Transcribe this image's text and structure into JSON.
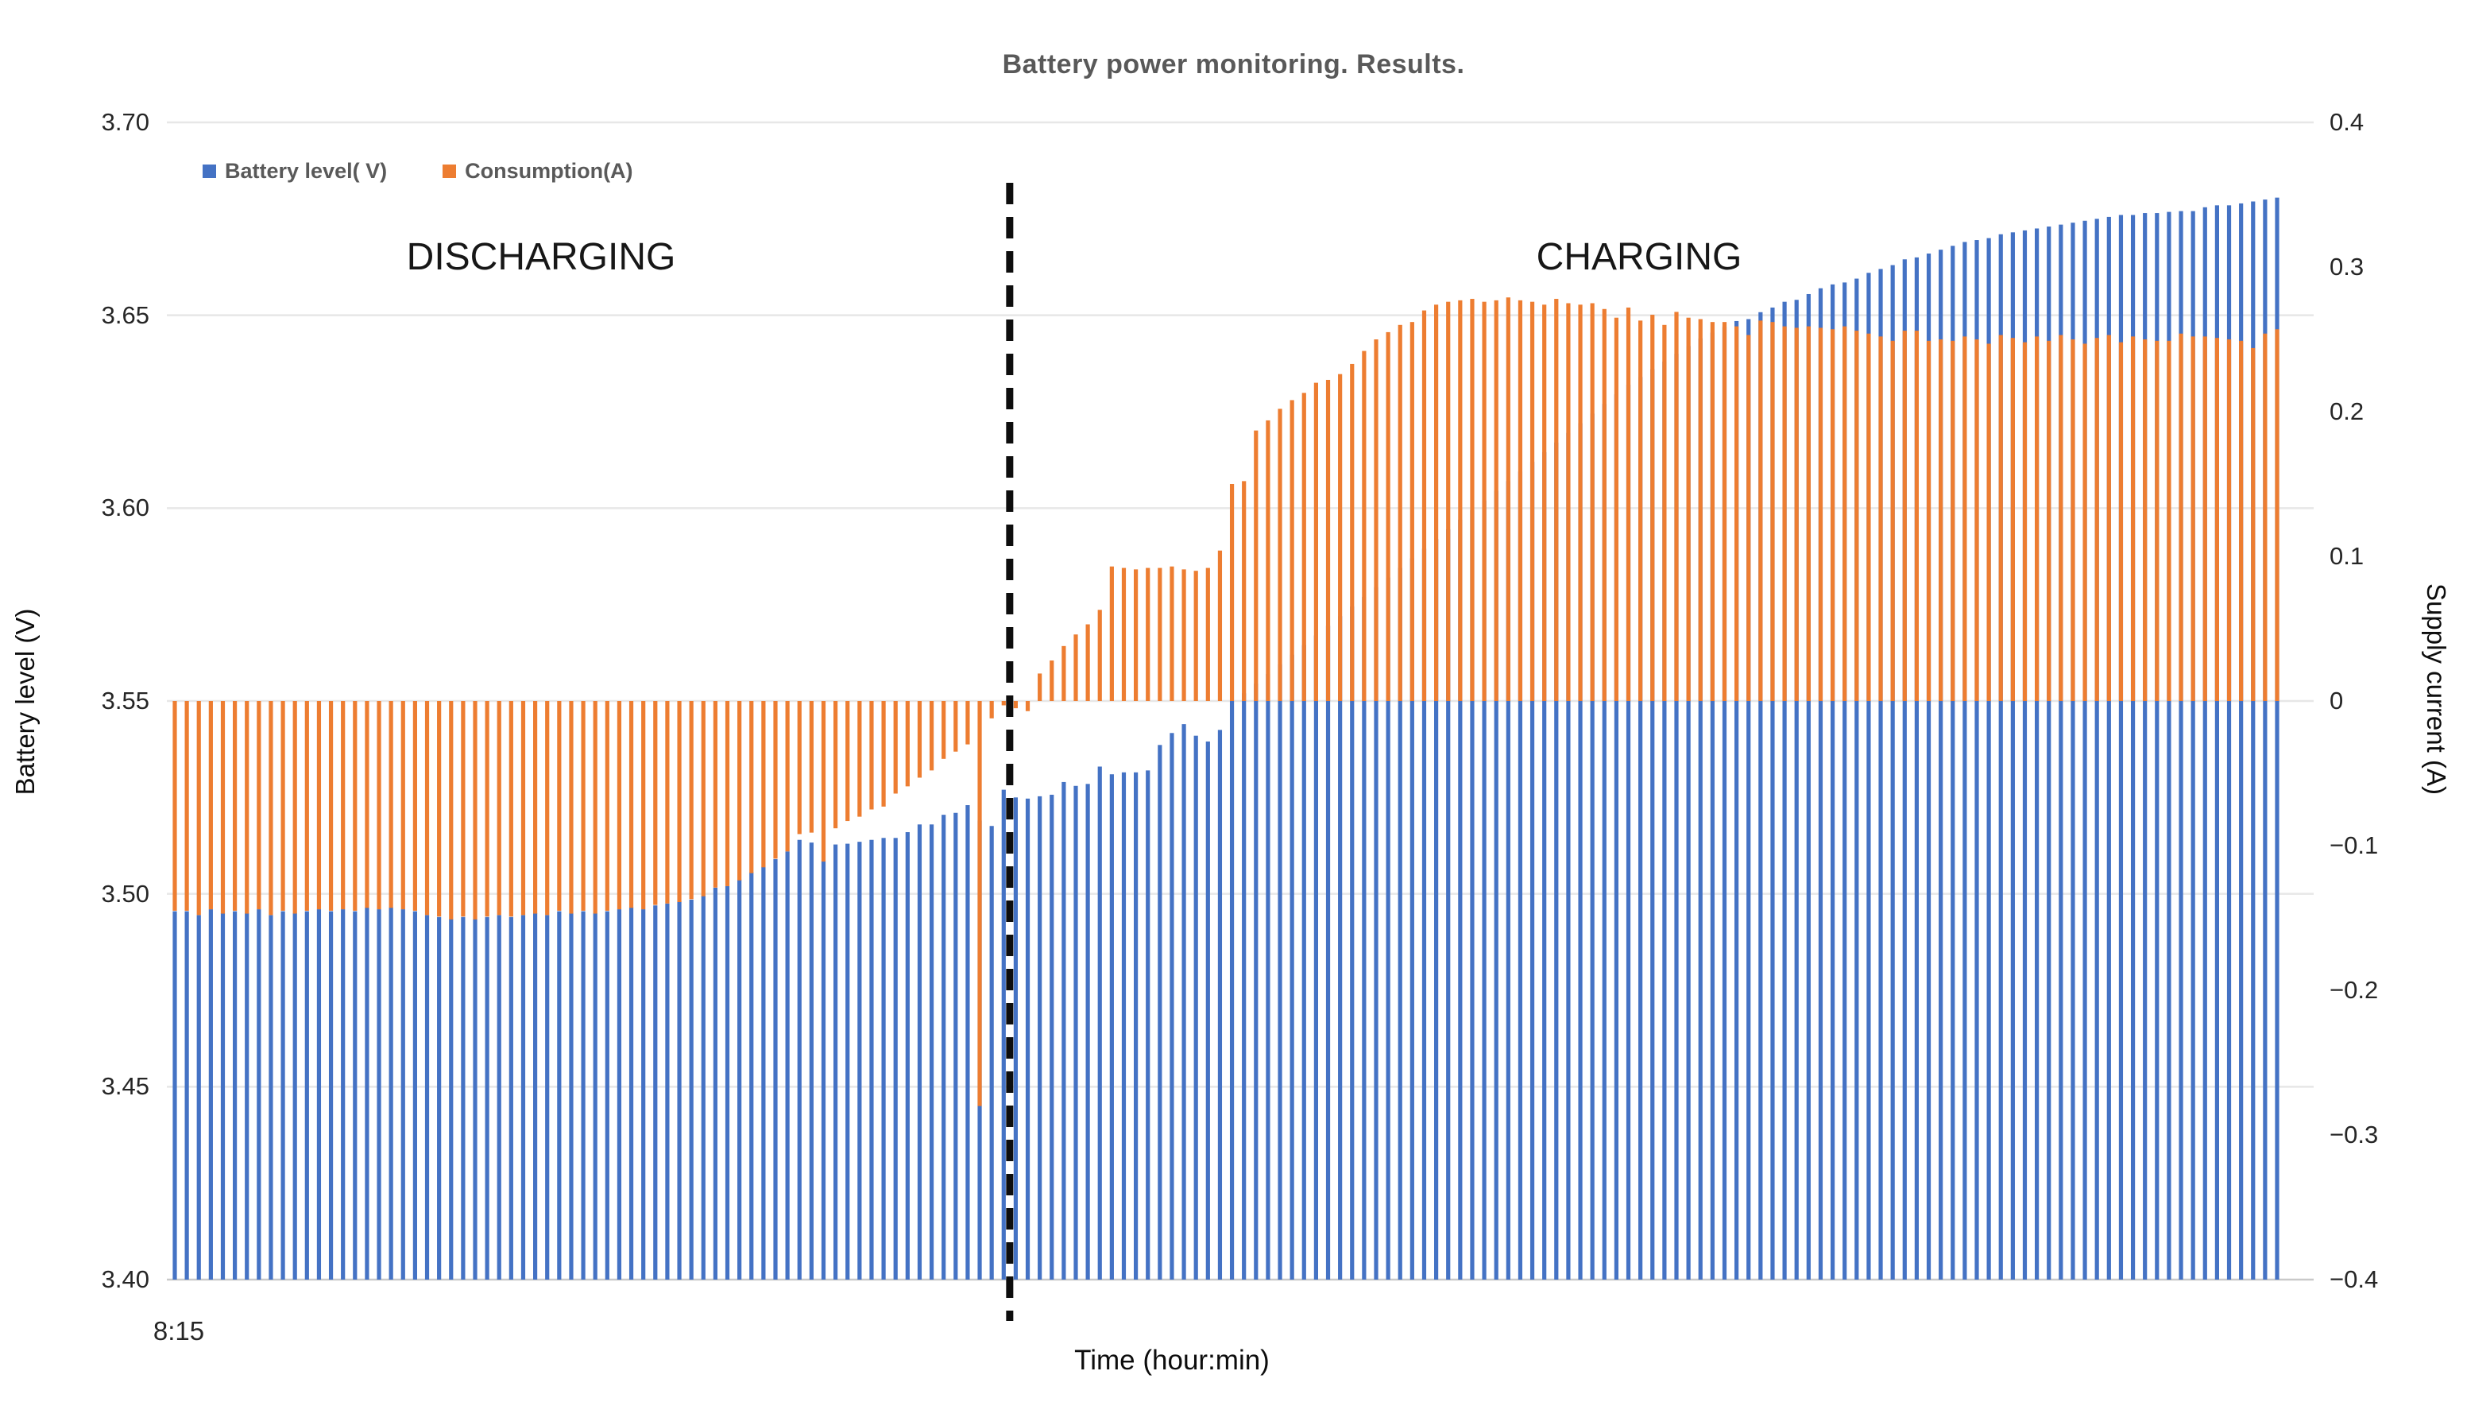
{
  "chart_data": {
    "type": "bar",
    "title": "Battery power monitoring. Results.",
    "annotations": {
      "discharging": "DISCHARGING",
      "charging": "CHARGING"
    },
    "x_axis": {
      "title": "Time (hour:min)",
      "first_tick_label": "8:15"
    },
    "y_axis_left": {
      "title": "Battery level (V)",
      "min": 3.4,
      "max": 3.7,
      "ticks": [
        3.7,
        3.65,
        3.6,
        3.55,
        3.5,
        3.45,
        3.4
      ],
      "tick_labels": [
        "3.70",
        "3.65",
        "3.60",
        "3.55",
        "3.50",
        "3.45",
        "3.40"
      ]
    },
    "y_axis_right": {
      "title": "Supply current (A)",
      "min": -0.4,
      "max": 0.4,
      "ticks": [
        0.4,
        0.3,
        0.2,
        0.1,
        0,
        -0.1,
        -0.2,
        -0.3,
        -0.4
      ],
      "tick_labels": [
        "0.4",
        "0.3",
        "0.2",
        "0.1",
        "0",
        "−0.1",
        "−0.2",
        "−0.3",
        "−0.4"
      ]
    },
    "grid": true,
    "legend_position": "top-left",
    "separator_after_index": 69,
    "series": [
      {
        "name": "Battery level( V)",
        "color": "#4472C4",
        "axis": "left",
        "baseline": 3.4,
        "values": [
          3.4955,
          3.4955,
          3.4945,
          3.496,
          3.495,
          3.4955,
          3.495,
          3.496,
          3.4945,
          3.4955,
          3.495,
          3.4955,
          3.496,
          3.4955,
          3.496,
          3.4955,
          3.4965,
          3.496,
          3.4965,
          3.496,
          3.4955,
          3.4945,
          3.494,
          3.4935,
          3.494,
          3.4935,
          3.494,
          3.4945,
          3.494,
          3.4945,
          3.495,
          3.4945,
          3.4955,
          3.495,
          3.4955,
          3.495,
          3.4955,
          3.496,
          3.4965,
          3.496,
          3.497,
          3.4975,
          3.498,
          3.4985,
          3.4995,
          3.5016,
          3.502,
          3.5037,
          3.5056,
          3.507,
          3.509,
          3.511,
          3.514,
          3.5133,
          3.5085,
          3.5128,
          3.513,
          3.5135,
          3.514,
          3.5145,
          3.5145,
          3.516,
          3.518,
          3.518,
          3.5205,
          3.521,
          3.523,
          3.519,
          3.5176,
          3.527,
          3.525,
          3.5247,
          3.5253,
          3.5257,
          3.529,
          3.528,
          3.5285,
          3.533,
          3.531,
          3.5315,
          3.5315,
          3.532,
          3.5386,
          3.5417,
          3.544,
          3.541,
          3.5395,
          3.5425,
          3.55,
          3.552,
          3.5545,
          3.557,
          3.5595,
          3.562,
          3.5645,
          3.567,
          3.5695,
          3.572,
          3.5745,
          3.577,
          3.5795,
          3.582,
          3.5845,
          3.587,
          3.5895,
          3.592,
          3.5945,
          3.597,
          3.5995,
          3.602,
          3.6045,
          3.607,
          3.6095,
          3.612,
          3.6145,
          3.617,
          3.6195,
          3.622,
          3.6245,
          3.627,
          3.6295,
          3.632,
          3.634,
          3.636,
          3.638,
          3.64,
          3.642,
          3.644,
          3.6455,
          3.647,
          3.6485,
          3.649,
          3.6508,
          3.652,
          3.6535,
          3.654,
          3.6555,
          3.657,
          3.658,
          3.6585,
          3.6595,
          3.661,
          3.662,
          3.663,
          3.6645,
          3.665,
          3.666,
          3.667,
          3.668,
          3.669,
          3.6695,
          3.67,
          3.671,
          3.6715,
          3.672,
          3.6725,
          3.673,
          3.6735,
          3.674,
          3.6745,
          3.675,
          3.6755,
          3.676,
          3.676,
          3.6765,
          3.6765,
          3.6768,
          3.677,
          3.677,
          3.678,
          3.6785,
          3.6785,
          3.679,
          3.6795,
          3.68,
          3.6805
        ]
      },
      {
        "name": "Consumption(A)",
        "color": "#ED7D31",
        "axis": "right",
        "baseline": 0,
        "values": [
          -0.145,
          -0.145,
          -0.148,
          -0.144,
          -0.147,
          -0.145,
          -0.147,
          -0.144,
          -0.148,
          -0.145,
          -0.147,
          -0.145,
          -0.144,
          -0.145,
          -0.144,
          -0.145,
          -0.143,
          -0.144,
          -0.143,
          -0.144,
          -0.145,
          -0.148,
          -0.149,
          -0.151,
          -0.149,
          -0.151,
          -0.149,
          -0.148,
          -0.149,
          -0.148,
          -0.147,
          -0.148,
          -0.145,
          -0.147,
          -0.145,
          -0.147,
          -0.145,
          -0.144,
          -0.143,
          -0.144,
          -0.141,
          -0.14,
          -0.139,
          -0.137,
          -0.135,
          -0.129,
          -0.128,
          -0.124,
          -0.119,
          -0.115,
          -0.109,
          -0.104,
          -0.092,
          -0.091,
          -0.111,
          -0.088,
          -0.083,
          -0.08,
          -0.075,
          -0.073,
          -0.064,
          -0.059,
          -0.053,
          -0.048,
          -0.04,
          -0.035,
          -0.03,
          -0.28,
          -0.012,
          -0.003,
          -0.005,
          -0.007,
          0.019,
          0.028,
          0.038,
          0.046,
          0.053,
          0.063,
          0.093,
          0.092,
          0.091,
          0.092,
          0.092,
          0.093,
          0.091,
          0.09,
          0.092,
          0.104,
          0.15,
          0.152,
          0.187,
          0.194,
          0.202,
          0.208,
          0.213,
          0.22,
          0.222,
          0.226,
          0.233,
          0.242,
          0.25,
          0.255,
          0.26,
          0.262,
          0.27,
          0.274,
          0.276,
          0.277,
          0.278,
          0.276,
          0.277,
          0.279,
          0.277,
          0.276,
          0.274,
          0.278,
          0.275,
          0.274,
          0.275,
          0.271,
          0.265,
          0.272,
          0.263,
          0.267,
          0.26,
          0.269,
          0.265,
          0.264,
          0.262,
          0.262,
          0.259,
          0.253,
          0.263,
          0.262,
          0.259,
          0.258,
          0.259,
          0.258,
          0.257,
          0.259,
          0.256,
          0.254,
          0.252,
          0.249,
          0.256,
          0.256,
          0.249,
          0.25,
          0.249,
          0.252,
          0.25,
          0.247,
          0.253,
          0.251,
          0.248,
          0.252,
          0.249,
          0.253,
          0.25,
          0.247,
          0.251,
          0.253,
          0.248,
          0.252,
          0.25,
          0.249,
          0.249,
          0.254,
          0.252,
          0.252,
          0.251,
          0.25,
          0.249,
          0.244,
          0.254,
          0.257
        ]
      }
    ]
  }
}
